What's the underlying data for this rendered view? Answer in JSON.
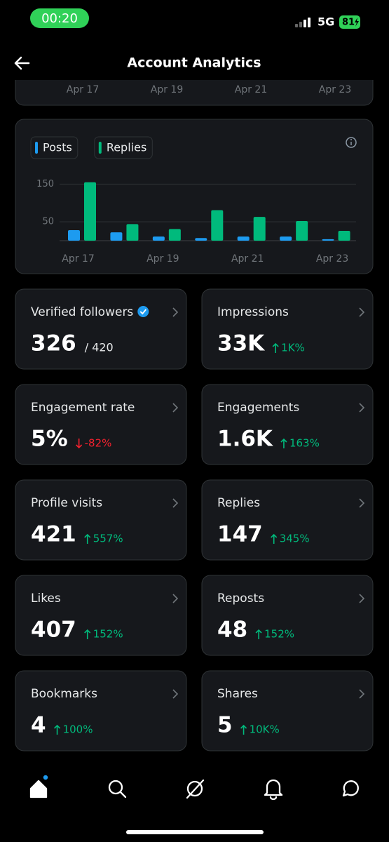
{
  "status_bar": {
    "time": "00:20",
    "network": "5G",
    "battery": "81"
  },
  "header": {
    "title": "Account Analytics"
  },
  "top_chart": {
    "labels": [
      "Apr 17",
      "Apr 19",
      "Apr 21",
      "Apr 23"
    ]
  },
  "chart_data": {
    "type": "bar",
    "categories": [
      "Apr 17",
      null,
      "Apr 19",
      null,
      "Apr 21",
      null,
      "Apr 23"
    ],
    "series": [
      {
        "name": "Posts",
        "color": "#1d9bf0",
        "values": [
          28,
          22,
          11,
          7,
          11,
          11,
          4
        ]
      },
      {
        "name": "Replies",
        "color": "#00ba7c",
        "values": [
          155,
          44,
          31,
          81,
          63,
          52,
          26
        ]
      }
    ],
    "ylim": [
      0,
      160
    ],
    "yticks": [
      50,
      150
    ],
    "grid": true
  },
  "metrics": [
    {
      "label": "Verified followers",
      "value": "326",
      "total": "/ 420",
      "verified": true
    },
    {
      "label": "Impressions",
      "value": "33K",
      "change": "1K%",
      "trend": "up"
    },
    {
      "label": "Engagement rate",
      "value": "5%",
      "change": "-82%",
      "trend": "down"
    },
    {
      "label": "Engagements",
      "value": "1.6K",
      "change": "163%",
      "trend": "up"
    },
    {
      "label": "Profile visits",
      "value": "421",
      "change": "557%",
      "trend": "up"
    },
    {
      "label": "Replies",
      "value": "147",
      "change": "345%",
      "trend": "up"
    },
    {
      "label": "Likes",
      "value": "407",
      "change": "152%",
      "trend": "up"
    },
    {
      "label": "Reposts",
      "value": "48",
      "change": "152%",
      "trend": "up"
    },
    {
      "label": "Bookmarks",
      "value": "4",
      "change": "100%",
      "trend": "up"
    },
    {
      "label": "Shares",
      "value": "5",
      "change": "10K%",
      "trend": "up"
    }
  ]
}
